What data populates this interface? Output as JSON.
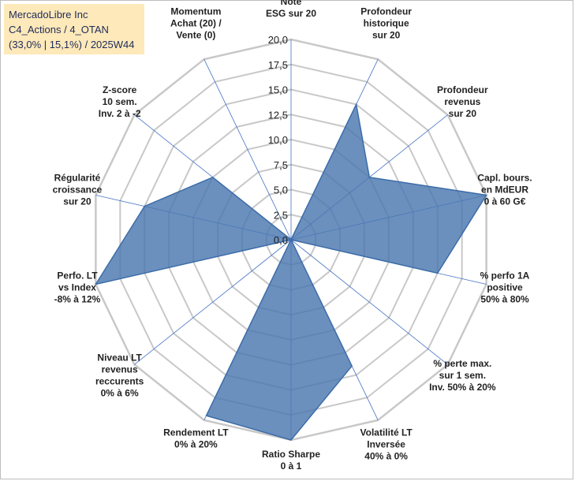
{
  "header": {
    "company": "MercadoLibre Inc",
    "category": "C4_Actions / 4_OTAN",
    "stats": "(33,0% | 15,1%) / 2025W44"
  },
  "chart_data": {
    "type": "radar",
    "title": "MercadoLibre Inc",
    "rmax": 20,
    "ticks": [
      "0,0",
      "2,5",
      "5,0",
      "7,5",
      "10,0",
      "12,5",
      "15,0",
      "17,5",
      "20,0"
    ],
    "tick_values": [
      0,
      2.5,
      5,
      7.5,
      10,
      12.5,
      15,
      17.5,
      20
    ],
    "axes": [
      {
        "label": [
          "Note",
          "ESG sur 20"
        ],
        "value": 0
      },
      {
        "label": [
          "Profondeur",
          "historique",
          "sur 20"
        ],
        "value": 15
      },
      {
        "label": [
          "Profondeur",
          "revenus",
          "sur 20"
        ],
        "value": 10
      },
      {
        "label": [
          "Capl. bours.",
          "en MdEUR",
          "0 à 60 G€"
        ],
        "value": 20
      },
      {
        "label": [
          "% perfo 1A",
          "positive",
          "50% à 80%"
        ],
        "value": 15
      },
      {
        "label": [
          "% perte max.",
          "sur 1 sem.",
          "Inv. 50% à 20%"
        ],
        "value": 0
      },
      {
        "label": [
          "Volatilité LT",
          "Inversée",
          "40% à 0%"
        ],
        "value": 14
      },
      {
        "label": [
          "Ratio Sharpe",
          "0 à 1"
        ],
        "value": 20
      },
      {
        "label": [
          "Rendement LT",
          "0% à 20%"
        ],
        "value": 19.5
      },
      {
        "label": [
          "Niveau LT",
          "revenus",
          "reccurents",
          "0% à 6%"
        ],
        "value": 0
      },
      {
        "label": [
          "Perfo. LT",
          "vs Index",
          "-8% à 12%"
        ],
        "value": 20
      },
      {
        "label": [
          "Régularité",
          "croissance",
          "sur 20"
        ],
        "value": 15
      },
      {
        "label": [
          "Z-score",
          "10 sem.",
          "Inv. 2 à -2"
        ],
        "value": 10
      },
      {
        "label": [
          "Momentum",
          "Achat (20) /",
          "Vente (0)"
        ],
        "value": 0
      }
    ],
    "colors": {
      "fill": "#4a78b0",
      "stroke": "#3c6ca8",
      "grid": "#c8c8c8",
      "spoke": "#4472c4"
    }
  }
}
